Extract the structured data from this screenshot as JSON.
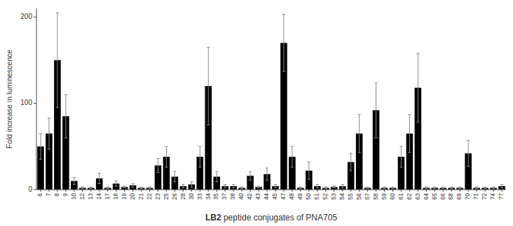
{
  "chart_data": {
    "type": "bar",
    "categories": [
      "6",
      "7",
      "8",
      "9",
      "10",
      "12",
      "13",
      "14",
      "17",
      "18",
      "19",
      "20",
      "21",
      "22",
      "23",
      "25",
      "26",
      "28",
      "30",
      "33",
      "34",
      "35",
      "37",
      "38",
      "40",
      "42",
      "43",
      "44",
      "45",
      "47",
      "48",
      "49",
      "50",
      "51",
      "52",
      "53",
      "54",
      "55",
      "56",
      "57",
      "58",
      "59",
      "60",
      "61",
      "62",
      "63",
      "64",
      "65",
      "66",
      "68",
      "69",
      "70",
      "71",
      "72",
      "74",
      "77"
    ],
    "values": [
      50,
      65,
      150,
      85,
      10,
      2,
      2,
      13,
      2,
      7,
      3,
      5,
      2,
      2,
      28,
      38,
      15,
      4,
      6,
      38,
      120,
      15,
      4,
      4,
      2,
      16,
      3,
      18,
      4,
      170,
      38,
      2,
      22,
      4,
      2,
      3,
      4,
      32,
      65,
      2,
      92,
      2,
      2,
      38,
      65,
      118,
      2,
      2,
      2,
      2,
      2,
      42,
      2,
      2,
      2,
      4
    ],
    "errors": [
      15,
      18,
      55,
      25,
      4,
      1,
      1,
      6,
      1,
      3,
      1,
      2,
      1,
      1,
      8,
      12,
      6,
      2,
      3,
      12,
      45,
      6,
      2,
      2,
      1,
      5,
      1,
      7,
      2,
      33,
      12,
      1,
      10,
      2,
      1,
      1,
      2,
      10,
      22,
      1,
      32,
      1,
      1,
      12,
      22,
      40,
      1,
      1,
      1,
      1,
      1,
      15,
      1,
      1,
      1,
      2
    ],
    "color": "#000000",
    "xlabel": "LB2 peptide conjugates of PNA705",
    "ylabel": "Fold increase in luminescence",
    "ylim": [
      0,
      210
    ],
    "yticks": [
      0,
      100,
      200
    ],
    "grid": false
  }
}
